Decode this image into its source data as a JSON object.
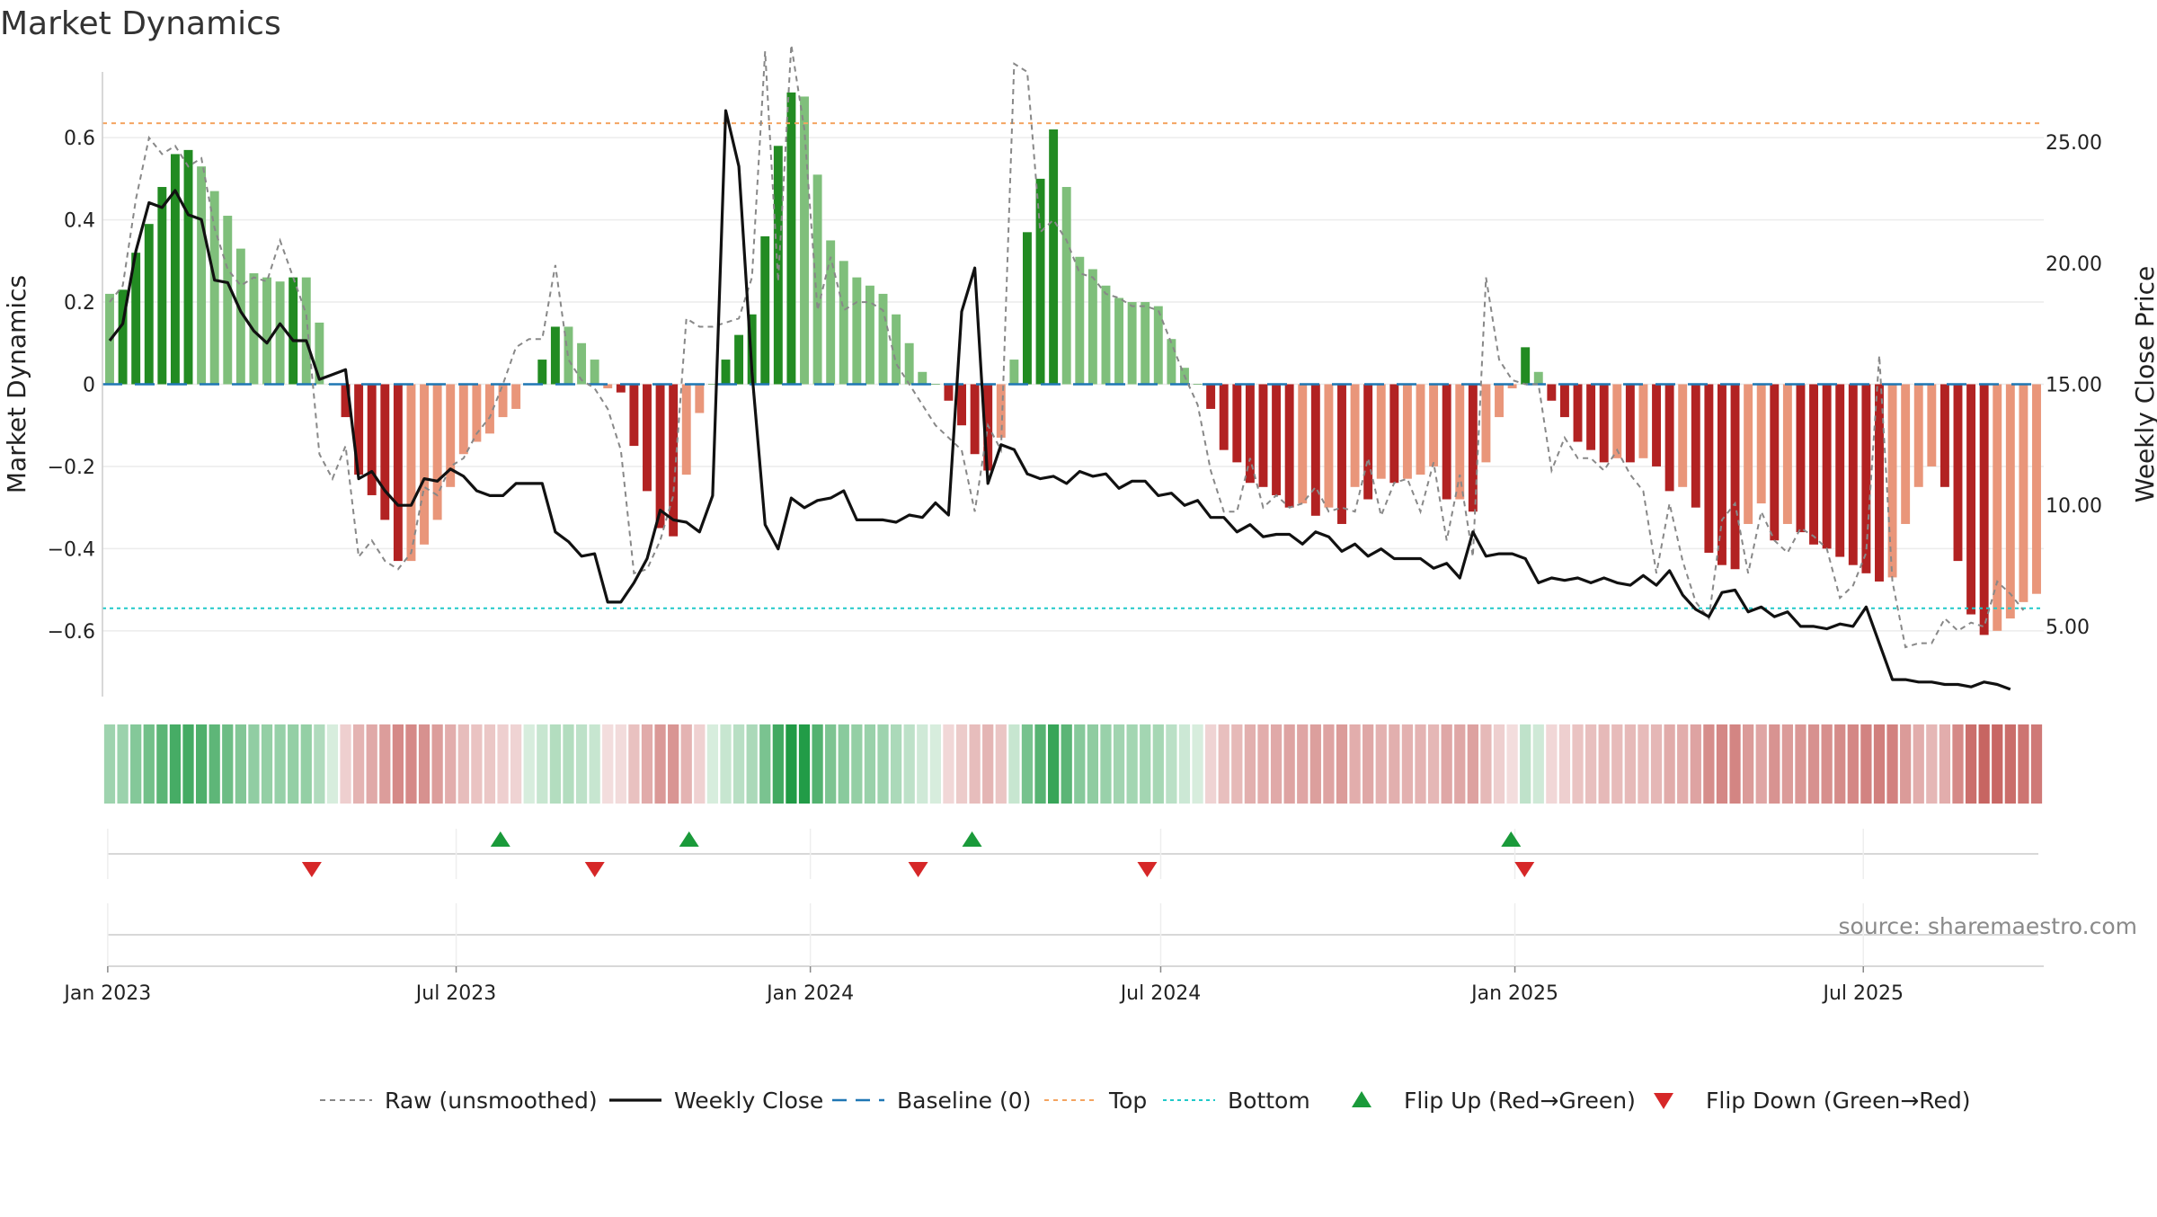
{
  "chart_data": {
    "type": "bar",
    "title": "Market Dynamics",
    "ylabel_left": "Market Dynamics",
    "ylabel_right": "Weekly Close Price",
    "source": "source: sharemaestro.com",
    "x_start": "2023-01-02",
    "x_end": "2025-09-29",
    "x_ticks": [
      {
        "date": "2023-01-01",
        "label": "Jan 2023"
      },
      {
        "date": "2023-07-01",
        "label": "Jul 2023"
      },
      {
        "date": "2024-01-01",
        "label": "Jan 2024"
      },
      {
        "date": "2024-07-01",
        "label": "Jul 2024"
      },
      {
        "date": "2025-01-01",
        "label": "Jan 2025"
      },
      {
        "date": "2025-07-01",
        "label": "Jul 2025"
      }
    ],
    "y_left": {
      "ylim": [
        -0.76,
        0.76
      ],
      "ticks": [
        {
          "value": 0.6,
          "label": "0.6"
        },
        {
          "value": 0.4,
          "label": "0.4"
        },
        {
          "value": 0.2,
          "label": "0.2"
        },
        {
          "value": 0,
          "label": "0"
        },
        {
          "value": -0.2,
          "label": "−0.2"
        },
        {
          "value": -0.4,
          "label": "−0.4"
        },
        {
          "value": -0.6,
          "label": "−0.6"
        }
      ]
    },
    "y_right": {
      "ylim": [
        2.1,
        27.9
      ],
      "ticks": [
        {
          "value": 25,
          "label": "25.00"
        },
        {
          "value": 20,
          "label": "20.00"
        },
        {
          "value": 15,
          "label": "15.00"
        },
        {
          "value": 10,
          "label": "10.00"
        },
        {
          "value": 5,
          "label": "5.00"
        }
      ]
    },
    "grid": true,
    "top_line": 0.635,
    "bottom_line": -0.545,
    "baseline": 0,
    "colors": {
      "dark_green": "#228b22",
      "light_green": "#7fbf7b",
      "dark_red": "#b22222",
      "light_red": "#e9967a",
      "close_line": "#111111",
      "raw_line": "#888888",
      "baseline": "#1f77b4",
      "top": "#f4a460",
      "bottom": "#20c9c9",
      "flip_up": "#1a9a3a",
      "flip_down": "#d62728"
    },
    "weeks": {
      "dynamics": [
        0.22,
        0.23,
        0.32,
        0.39,
        0.48,
        0.56,
        0.57,
        0.53,
        0.47,
        0.41,
        0.33,
        0.27,
        0.26,
        0.25,
        0.26,
        0.26,
        0.15,
        0.0,
        -0.08,
        -0.22,
        -0.27,
        -0.33,
        -0.43,
        -0.43,
        -0.39,
        -0.33,
        -0.25,
        -0.17,
        -0.14,
        -0.12,
        -0.08,
        -0.06,
        0.0,
        0.06,
        0.14,
        0.14,
        0.1,
        0.06,
        -0.01,
        -0.02,
        -0.15,
        -0.26,
        -0.35,
        -0.37,
        -0.22,
        -0.07,
        0.0,
        0.06,
        0.12,
        0.17,
        0.36,
        0.58,
        0.71,
        0.7,
        0.51,
        0.35,
        0.3,
        0.26,
        0.24,
        0.22,
        0.17,
        0.1,
        0.03,
        0.0,
        -0.04,
        -0.1,
        -0.17,
        -0.21,
        -0.13,
        0.06,
        0.37,
        0.5,
        0.62,
        0.48,
        0.31,
        0.28,
        0.24,
        0.21,
        0.2,
        0.2,
        0.19,
        0.11,
        0.04,
        0.0,
        -0.06,
        -0.16,
        -0.19,
        -0.24,
        -0.25,
        -0.27,
        -0.3,
        -0.29,
        -0.32,
        -0.3,
        -0.34,
        -0.25,
        -0.28,
        -0.23,
        -0.24,
        -0.23,
        -0.22,
        -0.2,
        -0.28,
        -0.28,
        -0.31,
        -0.19,
        -0.08,
        -0.01,
        0.09,
        0.03,
        -0.04,
        -0.08,
        -0.14,
        -0.16,
        -0.19,
        -0.18,
        -0.19,
        -0.18,
        -0.2,
        -0.26,
        -0.25,
        -0.3,
        -0.41,
        -0.44,
        -0.45,
        -0.34,
        -0.29,
        -0.38,
        -0.34,
        -0.36,
        -0.39,
        -0.4,
        -0.42,
        -0.44,
        -0.46,
        -0.48,
        -0.47,
        -0.34,
        -0.25,
        -0.2,
        -0.25,
        -0.43,
        -0.56,
        -0.61,
        -0.6,
        -0.57,
        -0.53,
        -0.51
      ],
      "close": [
        16.8,
        17.5,
        20.5,
        22.5,
        22.3,
        23.0,
        22.0,
        21.8,
        19.3,
        19.2,
        18.0,
        17.2,
        16.7,
        17.5,
        16.8,
        16.8,
        15.2,
        15.4,
        15.6,
        11.1,
        11.4,
        10.6,
        10.0,
        10.0,
        11.1,
        11.0,
        11.5,
        11.2,
        10.6,
        10.4,
        10.4,
        10.9,
        10.9,
        10.9,
        8.9,
        8.5,
        7.9,
        8.0,
        6.0,
        6.0,
        6.8,
        7.8,
        9.8,
        9.4,
        9.3,
        8.9,
        10.4,
        26.3,
        24.0,
        15.5,
        9.2,
        8.2,
        10.3,
        9.9,
        10.2,
        10.3,
        10.6,
        9.4,
        9.4,
        9.4,
        9.3,
        9.6,
        9.5,
        10.1,
        9.6,
        18.0,
        19.8,
        10.9,
        12.5,
        12.3,
        11.3,
        11.1,
        11.2,
        10.9,
        11.4,
        11.2,
        11.3,
        10.7,
        11.0,
        11.0,
        10.4,
        10.5,
        10.0,
        10.2,
        9.5,
        9.5,
        8.9,
        9.2,
        8.7,
        8.8,
        8.8,
        8.4,
        8.9,
        8.7,
        8.1,
        8.4,
        7.9,
        8.2,
        7.8,
        7.8,
        7.8,
        7.4,
        7.6,
        7.0,
        8.9,
        7.9,
        8.0,
        8.0,
        7.8,
        6.8,
        7.0,
        6.9,
        7.0,
        6.8,
        7.0,
        6.8,
        6.7,
        7.1,
        6.7,
        7.3,
        6.3,
        5.7,
        5.4,
        6.4,
        6.5,
        5.6,
        5.8,
        5.4,
        5.6,
        5.0,
        5.0,
        4.9,
        5.1,
        5.0,
        5.8,
        4.3,
        2.8,
        2.8,
        2.7,
        2.7,
        2.6,
        2.6,
        2.5,
        2.7,
        2.6,
        2.4
      ],
      "raw": [
        0.2,
        0.24,
        0.45,
        0.6,
        0.56,
        0.58,
        0.53,
        0.55,
        0.38,
        0.28,
        0.24,
        0.26,
        0.25,
        0.35,
        0.26,
        0.17,
        -0.17,
        -0.23,
        -0.15,
        -0.42,
        -0.38,
        -0.43,
        -0.45,
        -0.41,
        -0.25,
        -0.27,
        -0.2,
        -0.18,
        -0.12,
        -0.08,
        0.0,
        0.09,
        0.11,
        0.11,
        0.29,
        0.06,
        0.01,
        -0.01,
        -0.06,
        -0.16,
        -0.46,
        -0.45,
        -0.38,
        -0.27,
        0.16,
        0.14,
        0.14,
        0.15,
        0.16,
        0.26,
        0.81,
        0.25,
        0.86,
        0.62,
        0.18,
        0.31,
        0.18,
        0.2,
        0.2,
        0.18,
        0.05,
        0.0,
        -0.05,
        -0.1,
        -0.13,
        -0.16,
        -0.31,
        -0.1,
        -0.16,
        0.78,
        0.76,
        0.37,
        0.4,
        0.35,
        0.27,
        0.26,
        0.22,
        0.21,
        0.19,
        0.19,
        0.18,
        0.1,
        0.02,
        -0.05,
        -0.21,
        -0.31,
        -0.31,
        -0.18,
        -0.3,
        -0.27,
        -0.3,
        -0.29,
        -0.25,
        -0.31,
        -0.3,
        -0.31,
        -0.18,
        -0.32,
        -0.24,
        -0.23,
        -0.31,
        -0.19,
        -0.38,
        -0.22,
        -0.42,
        0.26,
        0.06,
        0.01,
        0.0,
        0.0,
        -0.21,
        -0.13,
        -0.18,
        -0.18,
        -0.21,
        -0.16,
        -0.22,
        -0.26,
        -0.46,
        -0.29,
        -0.43,
        -0.53,
        -0.57,
        -0.33,
        -0.29,
        -0.46,
        -0.31,
        -0.38,
        -0.41,
        -0.35,
        -0.37,
        -0.4,
        -0.52,
        -0.49,
        -0.41,
        0.07,
        -0.48,
        -0.64,
        -0.63,
        -0.63,
        -0.57,
        -0.6,
        -0.58,
        -0.59,
        -0.48,
        -0.51,
        -0.55
      ]
    },
    "flip_up_dates": [
      "2023-07-24",
      "2023-10-30",
      "2024-03-25",
      "2024-12-30"
    ],
    "flip_down_dates": [
      "2023-04-17",
      "2023-09-11",
      "2024-02-26",
      "2024-06-24",
      "2025-01-06"
    ],
    "strip_note": "color strip mirrors dynamics sign and magnitude (green positive, red negative)",
    "legend": [
      {
        "label": "Raw (unsmoothed)",
        "icon": "dashed-line-icon"
      },
      {
        "label": "Weekly Close",
        "icon": "solid-line-icon"
      },
      {
        "label": "Baseline (0)",
        "icon": "dashed-line-icon"
      },
      {
        "label": "Top",
        "icon": "dotted-line-icon"
      },
      {
        "label": "Bottom",
        "icon": "dotted-line-icon"
      },
      {
        "label": "Flip Up (Red→Green)",
        "icon": "triangle-up-icon"
      },
      {
        "label": "Flip Down (Green→Red)",
        "icon": "triangle-down-icon"
      }
    ]
  }
}
